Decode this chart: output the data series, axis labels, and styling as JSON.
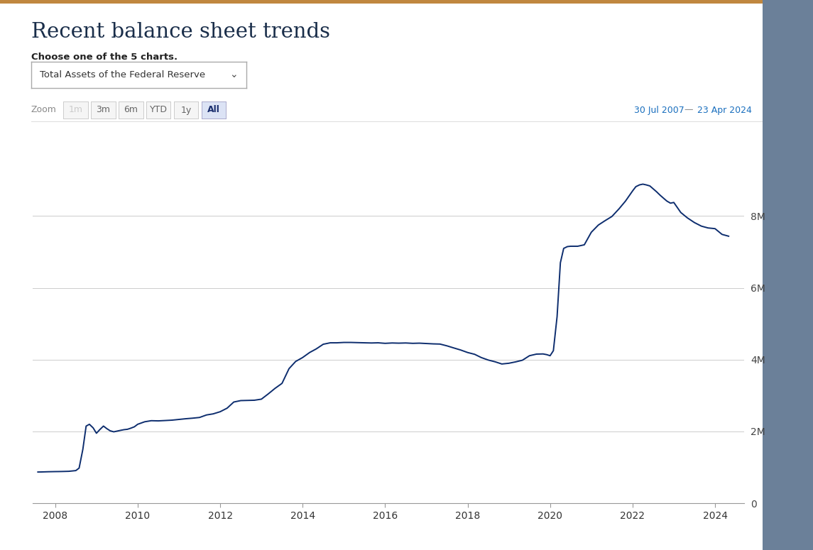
{
  "title": "Recent balance sheet trends",
  "subtitle": "Choose one of the 5 charts.",
  "dropdown_text": "Total Assets of the Federal Reserve",
  "zoom_label": "Zoom",
  "zoom_buttons": [
    "1m",
    "3m",
    "6m",
    "YTD",
    "1y",
    "All"
  ],
  "zoom_active": "All",
  "date_range_start": "30 Jul 2007",
  "date_range_end": "23 Apr 2024",
  "line_color": "#0d2d6e",
  "background_color": "#ffffff",
  "grid_color": "#cccccc",
  "title_color": "#1a2e4a",
  "date_color": "#1a6fbe",
  "ylim": [
    0,
    9500000
  ],
  "yticks": [
    0,
    2000000,
    4000000,
    6000000,
    8000000
  ],
  "ytick_labels": [
    "0",
    "2M",
    "4M",
    "6M",
    "8M"
  ],
  "x_years": [
    2008,
    2010,
    2012,
    2014,
    2016,
    2018,
    2020,
    2022,
    2024
  ],
  "top_bar_color": "#c0873f",
  "right_bar_color": "#6b8099",
  "data": {
    "years": [
      2007.58,
      2007.67,
      2007.75,
      2007.83,
      2007.92,
      2008.0,
      2008.08,
      2008.17,
      2008.33,
      2008.5,
      2008.58,
      2008.67,
      2008.75,
      2008.83,
      2008.92,
      2009.0,
      2009.08,
      2009.17,
      2009.25,
      2009.33,
      2009.42,
      2009.5,
      2009.58,
      2009.67,
      2009.75,
      2009.83,
      2009.92,
      2010.0,
      2010.17,
      2010.33,
      2010.5,
      2010.67,
      2010.83,
      2011.0,
      2011.17,
      2011.33,
      2011.5,
      2011.67,
      2011.83,
      2012.0,
      2012.17,
      2012.33,
      2012.5,
      2012.67,
      2012.83,
      2013.0,
      2013.17,
      2013.33,
      2013.5,
      2013.67,
      2013.83,
      2014.0,
      2014.17,
      2014.33,
      2014.5,
      2014.67,
      2014.83,
      2015.0,
      2015.17,
      2015.33,
      2015.5,
      2015.67,
      2015.83,
      2016.0,
      2016.17,
      2016.33,
      2016.5,
      2016.67,
      2016.83,
      2017.0,
      2017.17,
      2017.33,
      2017.5,
      2017.67,
      2017.83,
      2018.0,
      2018.17,
      2018.33,
      2018.5,
      2018.67,
      2018.83,
      2019.0,
      2019.17,
      2019.33,
      2019.5,
      2019.67,
      2019.83,
      2019.92,
      2020.0,
      2020.08,
      2020.17,
      2020.25,
      2020.33,
      2020.42,
      2020.5,
      2020.67,
      2020.83,
      2021.0,
      2021.17,
      2021.33,
      2021.5,
      2021.67,
      2021.83,
      2022.0,
      2022.08,
      2022.17,
      2022.25,
      2022.33,
      2022.42,
      2022.5,
      2022.58,
      2022.67,
      2022.75,
      2022.83,
      2022.92,
      2023.0,
      2023.17,
      2023.33,
      2023.5,
      2023.67,
      2023.83,
      2024.0,
      2024.17,
      2024.33
    ],
    "values": [
      870000,
      872000,
      875000,
      878000,
      880000,
      882000,
      883000,
      885000,
      890000,
      910000,
      980000,
      1500000,
      2150000,
      2200000,
      2100000,
      1950000,
      2050000,
      2150000,
      2080000,
      2020000,
      1990000,
      2010000,
      2030000,
      2050000,
      2060000,
      2090000,
      2130000,
      2200000,
      2270000,
      2300000,
      2295000,
      2305000,
      2315000,
      2335000,
      2355000,
      2370000,
      2390000,
      2460000,
      2490000,
      2550000,
      2650000,
      2820000,
      2860000,
      2865000,
      2870000,
      2900000,
      3050000,
      3200000,
      3340000,
      3750000,
      3950000,
      4060000,
      4200000,
      4300000,
      4430000,
      4470000,
      4470000,
      4480000,
      4480000,
      4475000,
      4470000,
      4465000,
      4470000,
      4455000,
      4465000,
      4460000,
      4465000,
      4455000,
      4460000,
      4450000,
      4440000,
      4435000,
      4385000,
      4325000,
      4270000,
      4200000,
      4150000,
      4060000,
      3990000,
      3940000,
      3880000,
      3900000,
      3940000,
      3985000,
      4110000,
      4155000,
      4160000,
      4140000,
      4110000,
      4250000,
      5200000,
      6700000,
      7100000,
      7150000,
      7160000,
      7160000,
      7200000,
      7550000,
      7750000,
      7870000,
      7990000,
      8200000,
      8420000,
      8700000,
      8820000,
      8870000,
      8890000,
      8870000,
      8840000,
      8760000,
      8680000,
      8580000,
      8500000,
      8420000,
      8360000,
      8380000,
      8100000,
      7950000,
      7820000,
      7720000,
      7670000,
      7650000,
      7490000,
      7440000
    ]
  }
}
